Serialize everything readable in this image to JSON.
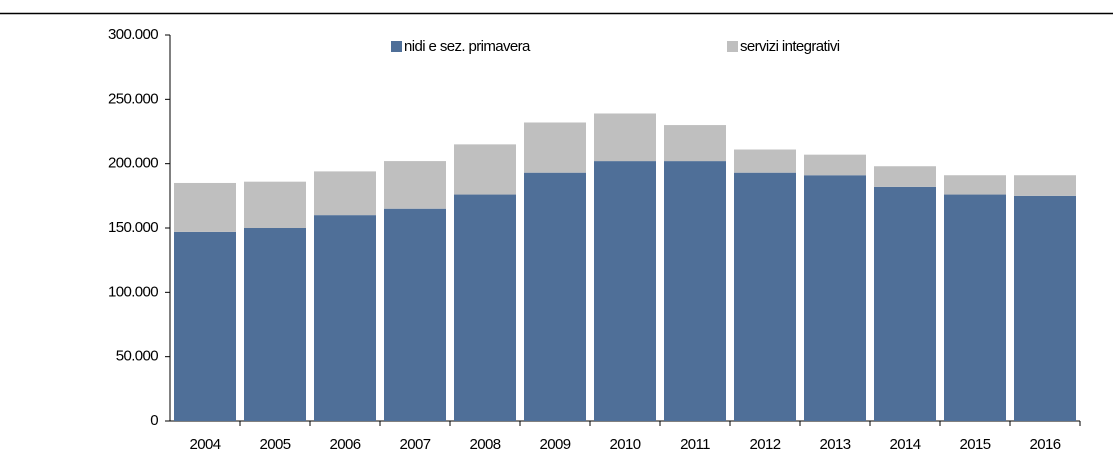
{
  "chart_data": {
    "type": "stacked_bar",
    "categories": [
      "2004",
      "2005",
      "2006",
      "2007",
      "2008",
      "2009",
      "2010",
      "2011",
      "2012",
      "2013",
      "2014",
      "2015",
      "2016"
    ],
    "series": [
      {
        "name": "nidi e sez. primavera",
        "color": "#4f6f98",
        "values": [
          147000,
          150000,
          160000,
          165000,
          176000,
          193000,
          202000,
          202000,
          193000,
          191000,
          182000,
          176000,
          175000
        ]
      },
      {
        "name": "servizi integrativi",
        "color": "#bfbfbf",
        "values": [
          38000,
          36000,
          34000,
          37000,
          39000,
          39000,
          37000,
          28000,
          18000,
          16000,
          16000,
          15000,
          16000
        ]
      }
    ],
    "ylim": [
      0,
      300000
    ],
    "yticks": [
      0,
      {
        "value": 50000,
        "label": "50.000"
      },
      {
        "value": 100000,
        "label": "100.000"
      },
      {
        "value": 150000,
        "label": "150.000"
      },
      {
        "value": 200000,
        "label": "200.000"
      },
      {
        "value": 250000,
        "label": "250.000"
      },
      {
        "value": 300000,
        "label": "300.000"
      }
    ],
    "legend": "top"
  }
}
